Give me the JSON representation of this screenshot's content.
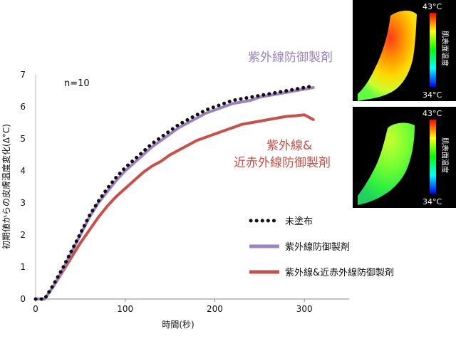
{
  "chart_data": {
    "type": "line",
    "xlabel": "時間(秒)",
    "ylabel": "初期値からの皮膚温度変化(Δ°C)",
    "xlim": [
      0,
      350
    ],
    "ylim": [
      0,
      7
    ],
    "xticks": [
      0,
      100,
      200,
      300
    ],
    "yticks": [
      0,
      1,
      2,
      3,
      4,
      5,
      6,
      7
    ],
    "annotation": "n=10",
    "label_uv": "紫外線防御製剤",
    "label_uvnir_line1": "紫外線&",
    "label_uvnir_line2": "近赤外線防御製剤",
    "x": [
      0,
      10,
      20,
      30,
      40,
      50,
      60,
      70,
      80,
      90,
      100,
      110,
      120,
      130,
      140,
      150,
      160,
      170,
      180,
      190,
      200,
      210,
      220,
      230,
      240,
      250,
      260,
      270,
      280,
      290,
      300,
      310
    ],
    "series": [
      {
        "name": "未塗布",
        "color": "#111111",
        "style": "dotted",
        "values": [
          0.0,
          0.0,
          0.45,
          0.95,
          1.5,
          2.05,
          2.6,
          3.05,
          3.45,
          3.8,
          4.1,
          4.35,
          4.6,
          4.85,
          5.05,
          5.25,
          5.45,
          5.6,
          5.75,
          5.9,
          6.0,
          6.1,
          6.2,
          6.25,
          6.3,
          6.35,
          6.4,
          6.45,
          6.5,
          6.55,
          6.6,
          6.65
        ]
      },
      {
        "name": "紫外線防御製剤",
        "color": "#9b83c0",
        "style": "solid",
        "values": [
          0.0,
          0.0,
          0.4,
          0.9,
          1.45,
          2.0,
          2.55,
          3.0,
          3.35,
          3.7,
          4.0,
          4.25,
          4.5,
          4.75,
          4.95,
          5.15,
          5.35,
          5.5,
          5.65,
          5.8,
          5.9,
          6.0,
          6.1,
          6.15,
          6.2,
          6.3,
          6.35,
          6.4,
          6.45,
          6.5,
          6.55,
          6.6
        ]
      },
      {
        "name": "紫外線&近赤外線防御製剤",
        "color": "#c94f48",
        "style": "solid",
        "values": [
          0.0,
          0.0,
          0.4,
          0.85,
          1.3,
          1.75,
          2.15,
          2.55,
          2.9,
          3.2,
          3.45,
          3.7,
          3.95,
          4.15,
          4.3,
          4.5,
          4.65,
          4.8,
          4.95,
          5.05,
          5.15,
          5.25,
          5.35,
          5.45,
          5.5,
          5.55,
          5.6,
          5.65,
          5.7,
          5.72,
          5.75,
          5.6
        ]
      }
    ],
    "legend_position": "bottom-right",
    "grid": false
  },
  "thermal_images": [
    {
      "scale_max": "43°C",
      "scale_min": "34°C",
      "scale_label": "肌表面温度",
      "colors": [
        "#ff0000",
        "#ffff00",
        "#00ff00",
        "#00ffff",
        "#0000ff"
      ]
    },
    {
      "scale_max": "43°C",
      "scale_min": "34°C",
      "scale_label": "肌表面温度",
      "colors": [
        "#ff0000",
        "#ffff00",
        "#00ff00",
        "#00ffff",
        "#0000ff"
      ]
    }
  ]
}
